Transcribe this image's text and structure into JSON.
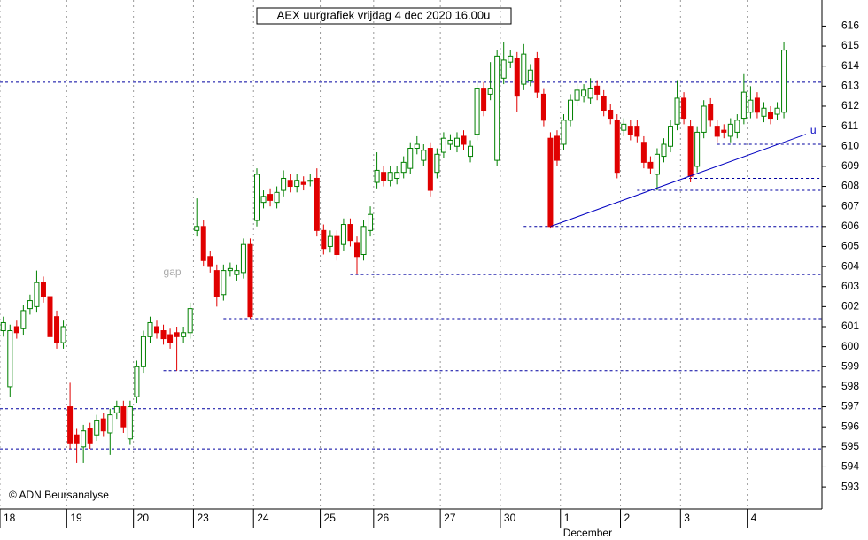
{
  "chart_data": {
    "type": "candlestick",
    "title": "AEX uurgrafiek vrijdag 4 dec 2020 16.00u",
    "source": "© ADN Beursanalyse",
    "xlim": [
      -0.5,
      122.7
    ],
    "ylim": [
      591.9,
      617.3
    ],
    "yticks": [
      593,
      594,
      595,
      596,
      597,
      598,
      599,
      600,
      601,
      602,
      603,
      604,
      605,
      606,
      607,
      608,
      609,
      610,
      611,
      612,
      613,
      614,
      615,
      616
    ],
    "xticks": [
      {
        "value": 0,
        "label": "18"
      },
      {
        "value": 10,
        "label": "19"
      },
      {
        "value": 20,
        "label": "20"
      },
      {
        "value": 29,
        "label": "23"
      },
      {
        "value": 38,
        "label": "24"
      },
      {
        "value": 48,
        "label": "25"
      },
      {
        "value": 56,
        "label": "26"
      },
      {
        "value": 66,
        "label": "27"
      },
      {
        "value": 75,
        "label": "30"
      },
      {
        "value": 84,
        "label": "1"
      },
      {
        "value": 93,
        "label": "2"
      },
      {
        "value": 102,
        "label": "3"
      },
      {
        "value": 112,
        "label": "4"
      }
    ],
    "month_label": {
      "value": 84,
      "label": "December"
    },
    "up_color": "#008000",
    "down_color": "#e00000",
    "open": [
      600.8,
      598.0,
      601.0,
      600.9,
      601.9,
      602.0,
      603.2,
      602.5,
      601.5,
      600.2,
      597.0,
      595.6,
      595.0,
      595.9,
      595.6,
      596.4,
      595.7,
      596.7,
      597.0,
      595.4,
      597.5,
      599.0,
      600.5,
      601.0,
      600.8,
      600.6,
      600.7,
      600.5,
      600.7,
      605.8,
      606.0,
      604.5,
      603.8,
      602.6,
      603.8,
      603.6,
      603.7,
      605.1,
      606.3,
      607.2,
      607.6,
      607.2,
      607.8,
      608.3,
      608.0,
      608.2,
      608.3,
      608.4,
      605.8,
      605.0,
      605.5,
      605.1,
      606.1,
      605.2,
      604.6,
      605.8,
      608.2,
      608.7,
      608.3,
      608.4,
      608.7,
      608.9,
      609.9,
      609.3,
      609.9,
      608.7,
      609.7,
      610.1,
      610.0,
      610.5,
      609.5,
      610.6,
      612.9,
      612.6,
      609.3,
      613.4,
      614.2,
      614.4,
      613.1,
      613.3,
      614.4,
      612.6,
      610.4,
      610.5,
      610.1,
      611.3,
      612.3,
      612.5,
      612.4,
      613.0,
      612.5,
      611.8,
      611.3,
      610.8,
      611.0,
      611.0,
      610.2,
      609.2,
      608.6,
      609.5,
      610.0,
      611.1,
      612.4,
      611.0,
      609.0,
      610.7,
      612.1,
      611.0,
      610.8,
      610.5,
      610.7,
      611.4,
      611.7,
      612.4,
      611.5,
      611.7,
      611.6,
      611.7
    ],
    "high": [
      601.5,
      601.1,
      601.3,
      602.1,
      602.6,
      603.8,
      603.5,
      602.8,
      601.8,
      601.3,
      598.2,
      595.9,
      596.1,
      596.2,
      596.6,
      596.7,
      596.9,
      597.3,
      597.3,
      597.3,
      599.3,
      600.8,
      601.5,
      601.3,
      601.1,
      600.9,
      601.0,
      601.0,
      602.2,
      607.4,
      606.3,
      604.8,
      604.1,
      604.1,
      604.2,
      604.1,
      605.4,
      605.4,
      608.9,
      607.8,
      607.9,
      608.0,
      608.8,
      608.6,
      608.6,
      608.5,
      608.6,
      608.9,
      606.1,
      605.8,
      605.8,
      606.4,
      606.4,
      605.5,
      606.3,
      607.0,
      609.7,
      609.0,
      609.0,
      609.0,
      609.5,
      610.2,
      610.5,
      610.1,
      610.2,
      609.9,
      610.7,
      610.6,
      610.7,
      610.8,
      610.3,
      613.3,
      613.2,
      614.2,
      614.8,
      615.2,
      614.8,
      614.7,
      615.1,
      614.1,
      614.7,
      612.9,
      610.7,
      610.8,
      611.6,
      612.6,
      613.1,
      613.1,
      613.4,
      613.3,
      612.8,
      612.1,
      611.6,
      611.4,
      611.3,
      611.3,
      610.5,
      609.5,
      609.9,
      610.4,
      611.3,
      613.3,
      612.7,
      611.3,
      611.0,
      612.3,
      612.4,
      611.3,
      611.1,
      611.4,
      611.6,
      613.6,
      613.0,
      612.7,
      612.2,
      612.0,
      612.2,
      615.2
    ],
    "low": [
      600.5,
      597.5,
      600.4,
      600.6,
      601.6,
      601.7,
      602.2,
      600.2,
      599.9,
      599.9,
      594.9,
      594.2,
      594.2,
      594.9,
      595.3,
      595.5,
      594.6,
      596.4,
      595.7,
      595.1,
      597.2,
      598.7,
      600.2,
      600.4,
      600.1,
      599.9,
      598.8,
      600.2,
      600.4,
      605.5,
      604.0,
      603.7,
      602.0,
      602.3,
      603.5,
      603.3,
      603.4,
      601.4,
      606.0,
      606.9,
      607.0,
      606.9,
      607.5,
      607.7,
      607.7,
      607.8,
      608.0,
      605.5,
      604.6,
      604.7,
      604.3,
      604.8,
      605.0,
      603.6,
      604.3,
      605.5,
      607.9,
      608.0,
      608.0,
      608.1,
      608.4,
      608.6,
      609.6,
      609.0,
      607.5,
      608.4,
      609.4,
      609.8,
      609.7,
      609.8,
      609.2,
      610.3,
      611.5,
      612.3,
      609.0,
      613.1,
      613.9,
      611.7,
      612.8,
      613.0,
      612.4,
      611.0,
      605.9,
      609.0,
      609.8,
      611.0,
      612.0,
      612.2,
      612.1,
      612.3,
      611.5,
      611.1,
      608.4,
      610.5,
      610.3,
      610.2,
      608.9,
      608.6,
      607.8,
      609.2,
      609.7,
      610.8,
      611.1,
      608.2,
      608.7,
      610.4,
      611.0,
      610.2,
      610.4,
      610.2,
      610.4,
      611.1,
      611.4,
      611.4,
      611.2,
      611.1,
      611.3,
      611.4
    ],
    "close": [
      601.2,
      600.8,
      600.7,
      601.8,
      602.3,
      603.2,
      602.5,
      600.5,
      600.2,
      601.0,
      595.2,
      595.2,
      595.8,
      595.2,
      596.3,
      595.8,
      596.6,
      597.0,
      596.0,
      597.0,
      599.0,
      600.5,
      601.2,
      600.7,
      600.4,
      600.2,
      600.5,
      600.7,
      601.9,
      606.0,
      604.3,
      604.0,
      602.5,
      603.8,
      603.9,
      603.8,
      605.1,
      601.5,
      608.6,
      607.5,
      607.3,
      607.7,
      608.4,
      608.0,
      608.3,
      608.1,
      608.3,
      605.8,
      604.9,
      605.5,
      604.6,
      606.1,
      605.3,
      604.5,
      606.0,
      606.6,
      608.8,
      608.3,
      608.7,
      608.7,
      609.2,
      609.9,
      610.1,
      609.8,
      607.8,
      609.6,
      610.4,
      610.3,
      610.4,
      610.1,
      610.0,
      612.9,
      611.8,
      612.9,
      614.5,
      614.3,
      614.5,
      612.5,
      614.6,
      613.8,
      612.7,
      611.3,
      606.0,
      609.3,
      611.3,
      612.3,
      612.8,
      612.8,
      612.9,
      612.6,
      611.8,
      611.4,
      608.7,
      611.1,
      610.6,
      610.5,
      609.2,
      608.9,
      609.6,
      610.1,
      611.0,
      612.4,
      611.4,
      608.5,
      610.7,
      612.0,
      611.3,
      610.5,
      610.7,
      611.1,
      611.3,
      612.7,
      612.3,
      611.7,
      611.9,
      611.4,
      611.9,
      614.8
    ],
    "levels": [
      {
        "value": 615.2,
        "from": 74
      },
      {
        "value": 613.2,
        "from": -0.5
      },
      {
        "value": 610.1,
        "from": 107
      },
      {
        "value": 608.4,
        "from": 102
      },
      {
        "value": 607.8,
        "from": 95
      },
      {
        "value": 606.0,
        "from": 78
      },
      {
        "value": 603.6,
        "from": 52
      },
      {
        "value": 601.4,
        "from": 33
      },
      {
        "value": 598.8,
        "from": 24
      },
      {
        "value": 596.9,
        "from": -0.5
      },
      {
        "value": 594.9,
        "from": -0.5
      }
    ],
    "level_color": "#0000a0",
    "trendline": {
      "x": [
        82,
        120.3
      ],
      "y": [
        606.0,
        610.6
      ],
      "label": "u",
      "color": "#0000c0"
    },
    "annotation": {
      "text": "gap",
      "x": 24,
      "y": 603.7
    }
  }
}
